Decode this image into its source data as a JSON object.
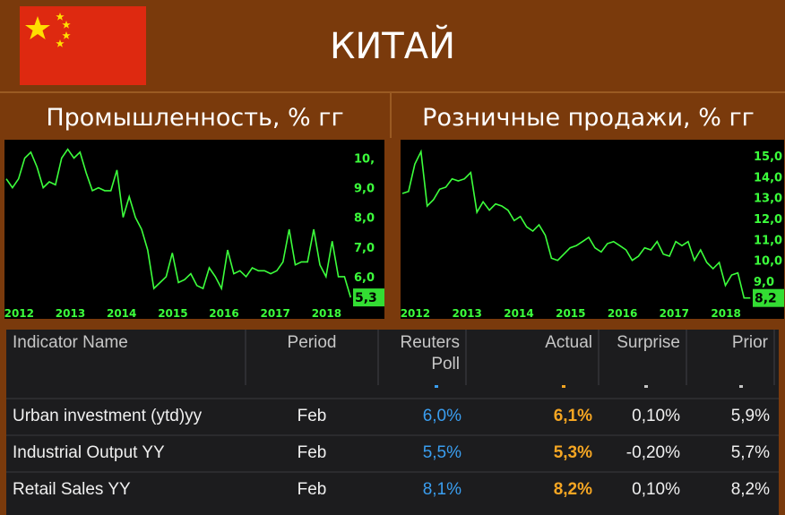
{
  "header": {
    "title": "КИТАЙ",
    "flag": {
      "icon": "china-flag-icon",
      "field_color": "#de2910",
      "star_color": "#ffde00"
    }
  },
  "panels": [
    {
      "title": "Промышленность, % гг"
    },
    {
      "title": "Розничные продажи, % гг"
    }
  ],
  "chart_data": [
    {
      "type": "line",
      "title": "Промышленность, % гг",
      "line_color": "#3cff3c",
      "x_ticks": [
        "2012",
        "2013",
        "2014",
        "2015",
        "2016",
        "2017",
        "2018"
      ],
      "y_ticks": [
        "6,0",
        "7,0",
        "8,0",
        "9,0",
        "10,"
      ],
      "y_tick_values": [
        6,
        7,
        8,
        9,
        10
      ],
      "last_value_label": "5,3",
      "ylim": [
        5.0,
        10.5
      ],
      "xlim": [
        2011.75,
        2018.5
      ],
      "grid": false,
      "x": [
        2011.75,
        2011.87,
        2011.99,
        2012.11,
        2012.23,
        2012.35,
        2012.47,
        2012.59,
        2012.71,
        2012.83,
        2012.95,
        2013.07,
        2013.19,
        2013.31,
        2013.43,
        2013.55,
        2013.67,
        2013.79,
        2013.91,
        2014.03,
        2014.15,
        2014.27,
        2014.39,
        2014.51,
        2014.63,
        2014.75,
        2014.87,
        2014.99,
        2015.11,
        2015.23,
        2015.35,
        2015.47,
        2015.59,
        2015.71,
        2015.83,
        2015.95,
        2016.07,
        2016.19,
        2016.31,
        2016.43,
        2016.55,
        2016.67,
        2016.79,
        2016.91,
        2017.03,
        2017.15,
        2017.27,
        2017.39,
        2017.51,
        2017.63,
        2017.75,
        2017.87,
        2017.99,
        2018.11,
        2018.23,
        2018.35,
        2018.47
      ],
      "values": [
        9.3,
        9.0,
        9.3,
        10.0,
        10.2,
        9.7,
        9.0,
        9.2,
        9.1,
        10.0,
        10.3,
        10.0,
        10.2,
        9.5,
        8.9,
        9.0,
        8.9,
        8.9,
        9.6,
        8.0,
        8.7,
        8.0,
        7.6,
        6.9,
        5.6,
        5.8,
        6.0,
        6.8,
        5.8,
        5.9,
        6.1,
        5.7,
        5.6,
        6.3,
        6.0,
        5.6,
        6.9,
        6.1,
        6.2,
        6.0,
        6.3,
        6.2,
        6.2,
        6.1,
        6.2,
        6.5,
        7.6,
        6.4,
        6.5,
        6.5,
        7.6,
        6.4,
        6.0,
        7.2,
        6.0,
        6.0,
        5.3
      ]
    },
    {
      "type": "line",
      "title": "Розничные продажи, % гг",
      "line_color": "#3cff3c",
      "x_ticks": [
        "2012",
        "2013",
        "2014",
        "2015",
        "2016",
        "2017",
        "2018"
      ],
      "y_ticks": [
        "9,0",
        "10,0",
        "11,0",
        "12,0",
        "13,0",
        "14,0",
        "15,0"
      ],
      "y_tick_values": [
        9,
        10,
        11,
        12,
        13,
        14,
        15
      ],
      "last_value_label": "8,2",
      "ylim": [
        7.8,
        15.6
      ],
      "xlim": [
        2011.75,
        2018.5
      ],
      "grid": false,
      "x": [
        2011.75,
        2011.87,
        2011.99,
        2012.11,
        2012.23,
        2012.35,
        2012.47,
        2012.59,
        2012.71,
        2012.83,
        2012.95,
        2013.07,
        2013.19,
        2013.31,
        2013.43,
        2013.55,
        2013.67,
        2013.79,
        2013.91,
        2014.03,
        2014.15,
        2014.27,
        2014.39,
        2014.51,
        2014.63,
        2014.75,
        2014.87,
        2014.99,
        2015.11,
        2015.23,
        2015.35,
        2015.47,
        2015.59,
        2015.71,
        2015.83,
        2015.95,
        2016.07,
        2016.19,
        2016.31,
        2016.43,
        2016.55,
        2016.67,
        2016.79,
        2016.91,
        2017.03,
        2017.15,
        2017.27,
        2017.39,
        2017.51,
        2017.63,
        2017.75,
        2017.87,
        2017.99,
        2018.11,
        2018.23,
        2018.35,
        2018.47
      ],
      "values": [
        13.2,
        13.3,
        14.6,
        15.2,
        12.6,
        12.9,
        13.4,
        13.5,
        13.9,
        13.8,
        13.9,
        14.2,
        12.3,
        12.8,
        12.4,
        12.7,
        12.6,
        12.4,
        11.9,
        12.1,
        11.6,
        11.4,
        11.7,
        11.2,
        10.1,
        10.0,
        10.3,
        10.6,
        10.7,
        10.9,
        11.1,
        10.6,
        10.4,
        10.8,
        10.9,
        10.7,
        10.5,
        10.0,
        10.2,
        10.6,
        10.5,
        10.9,
        10.3,
        10.2,
        10.9,
        10.7,
        10.9,
        10.0,
        10.5,
        9.9,
        9.6,
        9.9,
        8.8,
        9.3,
        9.4,
        8.2,
        8.2
      ]
    }
  ],
  "table": {
    "headers": {
      "indicator": "Indicator Name",
      "period": "Period",
      "poll_line1": "Reuters",
      "poll_line2": "Poll",
      "actual": "Actual",
      "surprise": "Surprise",
      "prior": "Prior"
    },
    "rows": [
      {
        "name": "Urban investment (ytd)yy",
        "period": "Feb",
        "poll": "6,0%",
        "actual": "6,1%",
        "surprise": "0,10%",
        "prior": "5,9%"
      },
      {
        "name": "Industrial Output YY",
        "period": "Feb",
        "poll": "5,5%",
        "actual": "5,3%",
        "surprise": "-0,20%",
        "prior": "5,7%"
      },
      {
        "name": "Retail Sales YY",
        "period": "Feb",
        "poll": "8,1%",
        "actual": "8,2%",
        "surprise": "0,10%",
        "prior": "8,2%"
      }
    ],
    "colors": {
      "poll": "#3a9ef0",
      "actual": "#f5a623",
      "text": "#f0f0f0",
      "header": "#c6c6c6"
    }
  }
}
